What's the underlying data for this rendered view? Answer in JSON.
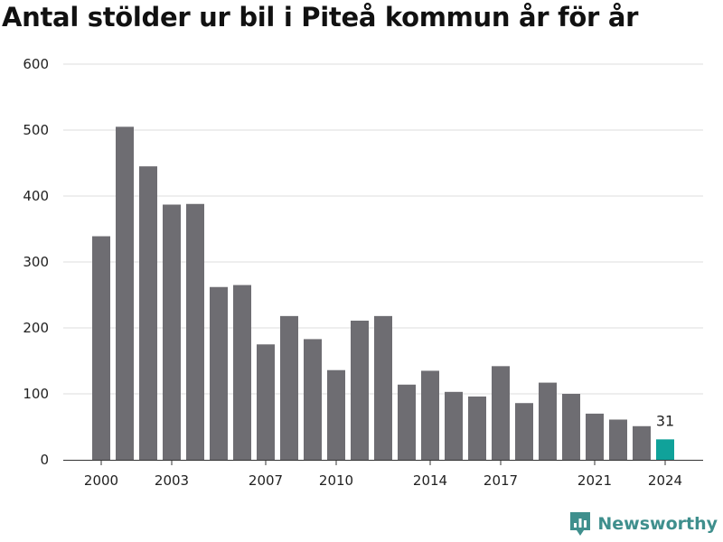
{
  "title": "Antal stölder ur bil i Piteå kommun år för år",
  "brand": {
    "name": "Newsworthy",
    "icon": "newsworthy-logo-icon",
    "color": "#3f8f8d"
  },
  "colors": {
    "bar": "#6e6d72",
    "highlight": "#10a29a",
    "grid": "#dcdcdc",
    "axis": "#333333"
  },
  "chart_data": {
    "type": "bar",
    "title": "Antal stölder ur bil i Piteå kommun år för år",
    "xlabel": "",
    "ylabel": "",
    "ylim": [
      0,
      600
    ],
    "yticks": [
      0,
      100,
      200,
      300,
      400,
      500,
      600
    ],
    "xticks": [
      2000,
      2003,
      2007,
      2010,
      2014,
      2017,
      2021,
      2024
    ],
    "grid": true,
    "legend": "none",
    "categories": [
      2000,
      2001,
      2002,
      2003,
      2004,
      2005,
      2006,
      2007,
      2008,
      2009,
      2010,
      2011,
      2012,
      2013,
      2014,
      2015,
      2016,
      2017,
      2018,
      2019,
      2020,
      2021,
      2022,
      2023,
      2024
    ],
    "values": [
      339,
      505,
      445,
      387,
      388,
      262,
      265,
      175,
      218,
      183,
      136,
      211,
      218,
      114,
      135,
      103,
      96,
      142,
      86,
      117,
      100,
      70,
      61,
      51,
      31
    ],
    "highlight": {
      "category": 2024,
      "label": "31"
    }
  }
}
